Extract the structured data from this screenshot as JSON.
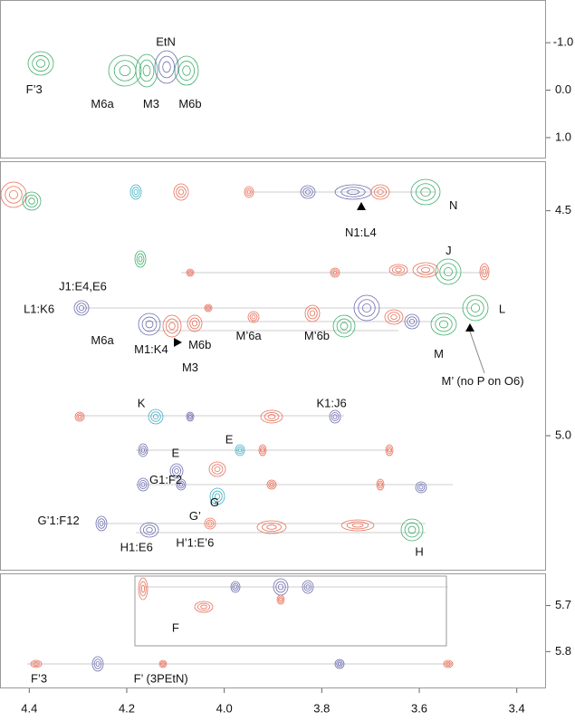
{
  "chart_data": [
    {
      "type": "contour",
      "xlim": [
        4.46,
        3.34
      ],
      "ylim": [
        1.44,
        -1.9
      ],
      "yticks": [
        {
          "value": -1,
          "label": "-1.0"
        },
        {
          "value": 0,
          "label": "0.0"
        },
        {
          "value": 1,
          "label": "1.0"
        }
      ],
      "annotations": [
        {
          "text": "EtN",
          "x": 4.12,
          "y": -1.0
        },
        {
          "text": "F’3",
          "x": 4.39,
          "y": 0.0
        },
        {
          "text": "M6a",
          "x": 4.25,
          "y": 0.31
        },
        {
          "text": "M3",
          "x": 4.15,
          "y": 0.31
        },
        {
          "text": "M6b",
          "x": 4.07,
          "y": 0.31
        }
      ]
    },
    {
      "type": "contour",
      "xlim": [
        4.46,
        3.34
      ],
      "ylim": [
        5.3,
        4.39
      ],
      "yticks": [
        4.5,
        {
          "value": 5,
          "label": "5.0"
        }
      ],
      "annotations": [
        {
          "text": "N1:L4",
          "x": 3.72,
          "y": 4.55
        },
        {
          "text": "N",
          "x": 3.53,
          "y": 4.49
        },
        {
          "text": "J",
          "x": 3.54,
          "y": 4.59
        },
        {
          "text": "J1:E4,E6",
          "x": 4.29,
          "y": 4.67
        },
        {
          "text": "L1:K6",
          "x": 4.38,
          "y": 4.72
        },
        {
          "text": "L",
          "x": 3.43,
          "y": 4.72
        },
        {
          "text": "M6a",
          "x": 4.25,
          "y": 4.79
        },
        {
          "text": "M1:K4",
          "x": 4.15,
          "y": 4.81
        },
        {
          "text": "M6b",
          "x": 4.05,
          "y": 4.8
        },
        {
          "text": "M3",
          "x": 4.07,
          "y": 4.85
        },
        {
          "text": "M’6a",
          "x": 3.95,
          "y": 4.78
        },
        {
          "text": "M’6b",
          "x": 3.81,
          "y": 4.78
        },
        {
          "text": "M",
          "x": 3.56,
          "y": 4.82
        },
        {
          "text": "M’ (no P on O6)",
          "x": 3.47,
          "y": 4.88
        },
        {
          "text": "K",
          "x": 4.17,
          "y": 4.93
        },
        {
          "text": "K1:J6",
          "x": 3.78,
          "y": 4.93
        },
        {
          "text": "E",
          "x": 3.99,
          "y": 5.01
        },
        {
          "text": "E",
          "x": 4.1,
          "y": 5.04
        },
        {
          "text": "G1:F2",
          "x": 4.12,
          "y": 5.1
        },
        {
          "text": "G",
          "x": 4.02,
          "y": 5.15
        },
        {
          "text": "G’",
          "x": 4.06,
          "y": 5.18
        },
        {
          "text": "G’1:F12",
          "x": 4.34,
          "y": 5.19
        },
        {
          "text": "H1:E6",
          "x": 4.18,
          "y": 5.25
        },
        {
          "text": "H’1:E’6",
          "x": 4.06,
          "y": 5.24
        },
        {
          "text": "H",
          "x": 3.6,
          "y": 5.26
        }
      ]
    },
    {
      "type": "contour",
      "xlim": [
        4.46,
        3.34
      ],
      "ylim": [
        5.88,
        5.63
      ],
      "yticks": [
        5.7,
        5.8
      ],
      "xticks": [
        4.4,
        4.2,
        {
          "value": 4,
          "label": "4.0"
        },
        3.8,
        3.6,
        3.4
      ],
      "annotations": [
        {
          "text": "F",
          "x": 4.1,
          "y": 5.75
        },
        {
          "text": "F’3",
          "x": 4.38,
          "y": 5.86
        },
        {
          "text": "F’ (3PEtN)",
          "x": 4.13,
          "y": 5.86
        }
      ]
    }
  ]
}
